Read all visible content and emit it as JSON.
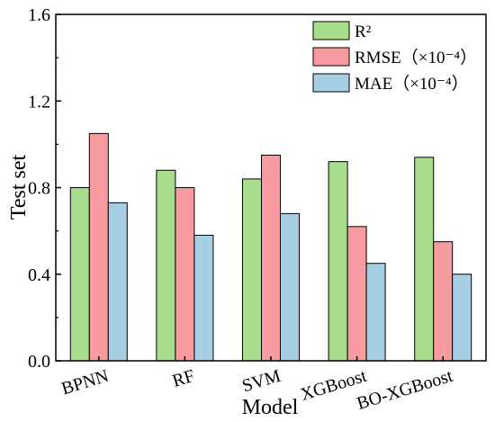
{
  "chart_data": {
    "type": "bar",
    "categories": [
      "BPNN",
      "RF",
      "SVM",
      "XGBoost",
      "BO-XGBoost"
    ],
    "series": [
      {
        "name": "R²",
        "values": [
          0.8,
          0.88,
          0.84,
          0.92,
          0.94
        ],
        "color": "#a8dd8c"
      },
      {
        "name": "RMSE（×10⁻⁴）",
        "values": [
          1.05,
          0.8,
          0.95,
          0.62,
          0.55
        ],
        "color": "#f79ba0"
      },
      {
        "name": "MAE（×10⁻⁴）",
        "values": [
          0.73,
          0.58,
          0.68,
          0.45,
          0.4
        ],
        "color": "#a7cfe4"
      }
    ],
    "xlabel": "Model",
    "ylabel": "Test set",
    "ylim": [
      0.0,
      1.6
    ],
    "yticks": [
      "0.0",
      "0.4",
      "0.8",
      "1.2",
      "1.6"
    ],
    "grid": false,
    "legend_position": "top-right"
  }
}
